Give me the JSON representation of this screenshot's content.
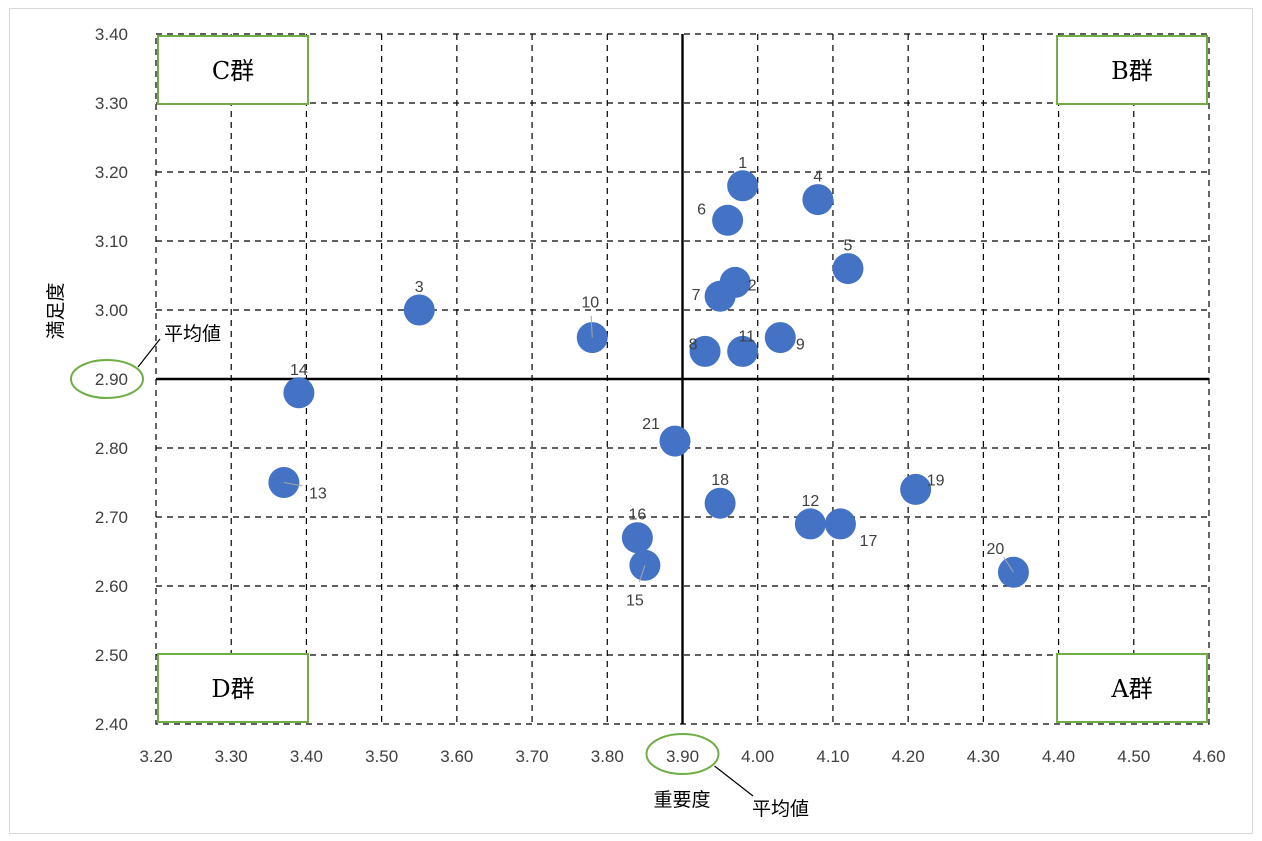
{
  "chart_data": {
    "type": "scatter",
    "xlabel": "重要度",
    "ylabel": "満足度",
    "xlim": [
      3.2,
      4.6
    ],
    "ylim": [
      2.4,
      3.4
    ],
    "x_ticks": [
      "3.20",
      "3.30",
      "3.40",
      "3.50",
      "3.60",
      "3.70",
      "3.80",
      "3.90",
      "4.00",
      "4.10",
      "4.20",
      "4.30",
      "4.40",
      "4.50",
      "4.60"
    ],
    "y_ticks": [
      "3.40",
      "3.30",
      "3.20",
      "3.10",
      "3.00",
      "2.90",
      "2.80",
      "2.70",
      "2.60",
      "2.50",
      "2.40"
    ],
    "grid": "dashed",
    "average_lines": {
      "x": 3.9,
      "y": 2.9
    },
    "average_label": "平均値",
    "groups": [
      {
        "label": "C群",
        "corner": "top-left"
      },
      {
        "label": "B群",
        "corner": "top-right"
      },
      {
        "label": "D群",
        "corner": "bottom-left"
      },
      {
        "label": "A群",
        "corner": "bottom-right"
      }
    ],
    "point_color": "#4472C4",
    "points": [
      {
        "label": "1",
        "x": 3.98,
        "y": 3.18
      },
      {
        "label": "2",
        "x": 3.97,
        "y": 3.04
      },
      {
        "label": "3",
        "x": 3.55,
        "y": 3.0
      },
      {
        "label": "4",
        "x": 4.08,
        "y": 3.16
      },
      {
        "label": "5",
        "x": 4.12,
        "y": 3.06
      },
      {
        "label": "6",
        "x": 3.96,
        "y": 3.13
      },
      {
        "label": "7",
        "x": 3.95,
        "y": 3.02
      },
      {
        "label": "8",
        "x": 3.93,
        "y": 2.94
      },
      {
        "label": "9",
        "x": 4.03,
        "y": 2.96
      },
      {
        "label": "10",
        "x": 3.78,
        "y": 2.96
      },
      {
        "label": "11",
        "x": 3.98,
        "y": 2.94
      },
      {
        "label": "12",
        "x": 4.07,
        "y": 2.69
      },
      {
        "label": "13",
        "x": 3.37,
        "y": 2.75
      },
      {
        "label": "14",
        "x": 3.39,
        "y": 2.88
      },
      {
        "label": "15",
        "x": 3.85,
        "y": 2.63
      },
      {
        "label": "16",
        "x": 3.84,
        "y": 2.67
      },
      {
        "label": "17",
        "x": 4.11,
        "y": 2.69
      },
      {
        "label": "18",
        "x": 3.95,
        "y": 2.72
      },
      {
        "label": "19",
        "x": 4.21,
        "y": 2.74
      },
      {
        "label": "20",
        "x": 4.34,
        "y": 2.62
      },
      {
        "label": "21",
        "x": 3.89,
        "y": 2.81
      }
    ]
  }
}
